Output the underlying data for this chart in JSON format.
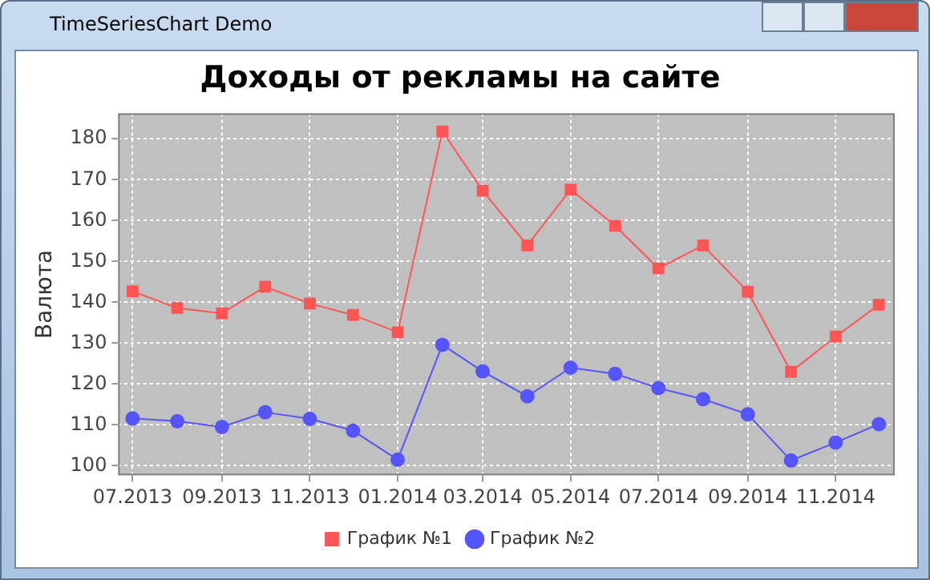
{
  "chart_data": {
    "type": "line",
    "title": "Доходы от рекламы на сайте",
    "ylabel": "Валюта",
    "annotations": [
      "TimeSeriesChart Demo"
    ],
    "x": [
      "2013-07",
      "2013-08",
      "2013-09",
      "2013-10",
      "2013-11",
      "2013-12",
      "2014-01",
      "2014-02",
      "2014-03",
      "2014-04",
      "2014-05",
      "2014-06",
      "2014-07",
      "2014-08",
      "2014-09",
      "2014-10",
      "2014-11",
      "2014-12"
    ],
    "series": [
      {
        "name": "График №1",
        "color": "#ff5555",
        "marker": "square",
        "values": [
          142.7,
          138.6,
          137.3,
          143.8,
          139.7,
          136.9,
          132.7,
          181.8,
          167.3,
          153.9,
          167.6,
          158.7,
          148.3,
          153.9,
          142.6,
          123.0,
          131.6,
          139.4
        ]
      },
      {
        "name": "График №2",
        "color": "#5555ff",
        "marker": "circle",
        "values": [
          111.6,
          110.9,
          109.5,
          113.1,
          111.5,
          108.6,
          101.5,
          129.6,
          123.1,
          117.0,
          124.0,
          122.5,
          119.0,
          116.3,
          112.6,
          101.3,
          105.7,
          110.2
        ]
      }
    ],
    "xlim": [
      "2013-06-21",
      "2014-12-12"
    ],
    "xticks": [
      {
        "value": "2013-07",
        "label": "07.2013"
      },
      {
        "value": "2013-09",
        "label": "09.2013"
      },
      {
        "value": "2013-11",
        "label": "11.2013"
      },
      {
        "value": "2014-01",
        "label": "01.2014"
      },
      {
        "value": "2014-03",
        "label": "03.2014"
      },
      {
        "value": "2014-05",
        "label": "05.2014"
      },
      {
        "value": "2014-07",
        "label": "07.2014"
      },
      {
        "value": "2014-09",
        "label": "09.2014"
      },
      {
        "value": "2014-11",
        "label": "11.2014"
      }
    ],
    "ylim": [
      97.7,
      186.2
    ],
    "yticks": [
      100,
      110,
      120,
      130,
      140,
      150,
      160,
      170,
      180
    ],
    "grid": true,
    "legend": "bottom",
    "line_style": "solid"
  }
}
